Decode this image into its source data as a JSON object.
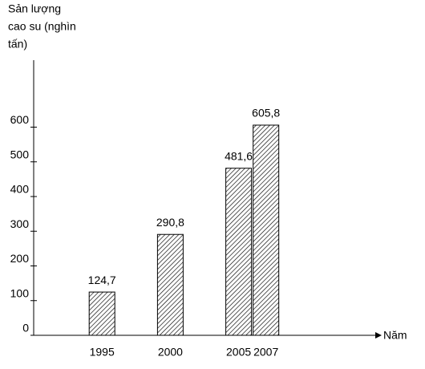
{
  "chart_data": {
    "type": "bar",
    "y_label": [
      "Sản lượng",
      "cao su (nghìn",
      "tấn)"
    ],
    "x_label": "Năm",
    "x": [
      1995,
      2000,
      2005,
      2007
    ],
    "values": [
      124.7,
      290.8,
      481.6,
      605.8
    ],
    "value_labels": [
      "124,7",
      "290,8",
      "481,6",
      "605,8"
    ],
    "xlim": [
      1990,
      2015
    ],
    "xticks": [
      1995,
      2000,
      2005,
      2007
    ],
    "ylim": [
      0,
      800
    ],
    "yticks": [
      0,
      100,
      200,
      300,
      400,
      500,
      600
    ],
    "pattern": "hatch",
    "color": "#000000"
  }
}
